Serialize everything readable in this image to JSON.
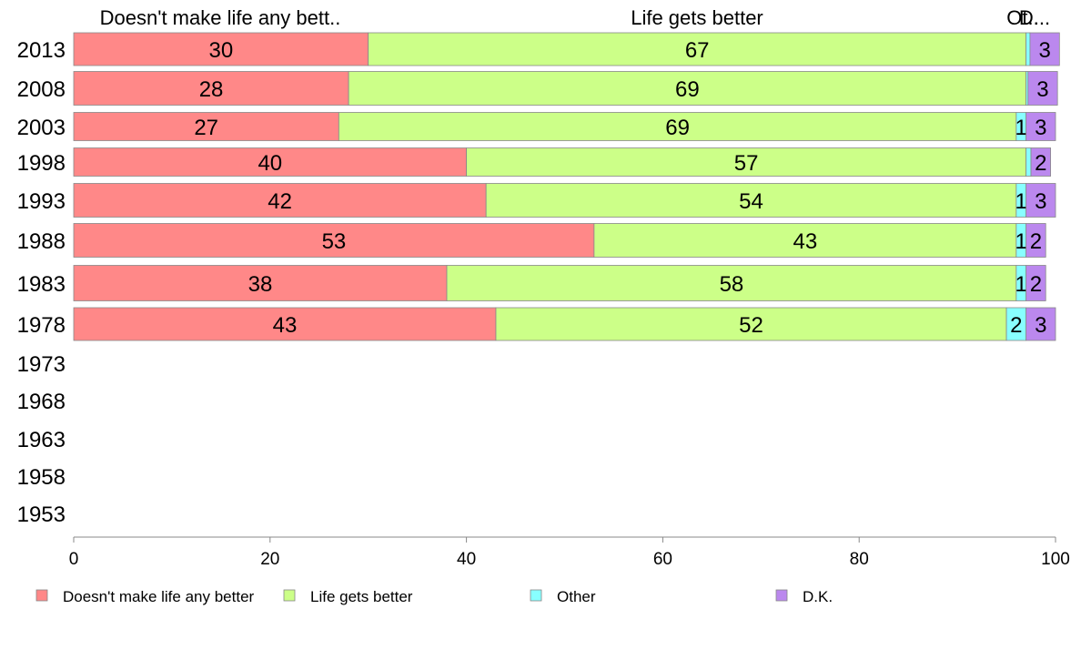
{
  "colors": {
    "Doesn't make life any better": "#ff8888",
    "Life gets better": "#ccff88",
    "Other": "#88ffff",
    "D.K.": "#bb88ee"
  },
  "chart_data": {
    "type": "bar",
    "orientation": "horizontal",
    "stacked": true,
    "categories": [
      "2013",
      "2008",
      "2003",
      "1998",
      "1993",
      "1988",
      "1983",
      "1978",
      "1973",
      "1968",
      "1963",
      "1958",
      "1953"
    ],
    "series": [
      {
        "name": "Doesn't make life any better",
        "values": [
          30,
          28,
          27,
          40,
          42,
          53,
          38,
          43,
          null,
          null,
          null,
          null,
          null
        ]
      },
      {
        "name": "Life gets better",
        "values": [
          67,
          69,
          69,
          57,
          54,
          43,
          58,
          52,
          null,
          null,
          null,
          null,
          null
        ]
      },
      {
        "name": "Other",
        "values": [
          0.4,
          0.2,
          1,
          0.5,
          1,
          1,
          1,
          2,
          null,
          null,
          null,
          null,
          null
        ]
      },
      {
        "name": "D.K.",
        "values": [
          3,
          3,
          3,
          2,
          3,
          2,
          2,
          3,
          null,
          null,
          null,
          null,
          null
        ]
      }
    ],
    "data_labels": [
      [
        "30",
        "67",
        "",
        "3"
      ],
      [
        "28",
        "69",
        "",
        "3"
      ],
      [
        "27",
        "69",
        "1",
        "3"
      ],
      [
        "40",
        "57",
        "",
        "2"
      ],
      [
        "42",
        "54",
        "1",
        "3"
      ],
      [
        "53",
        "43",
        "1",
        "2"
      ],
      [
        "38",
        "58",
        "1",
        "2"
      ],
      [
        "43",
        "52",
        "2",
        "3"
      ]
    ],
    "column_headers": [
      "Doesn't make life any bett..",
      "Life gets better",
      "Ot..",
      "D..."
    ],
    "xlim": [
      0,
      100
    ],
    "xticks": [
      0,
      20,
      40,
      60,
      80,
      100
    ],
    "grid": false,
    "legend": {
      "position": "bottom",
      "entries": [
        "Doesn't make life any better",
        "Life gets better",
        "Other",
        "D.K."
      ]
    }
  }
}
